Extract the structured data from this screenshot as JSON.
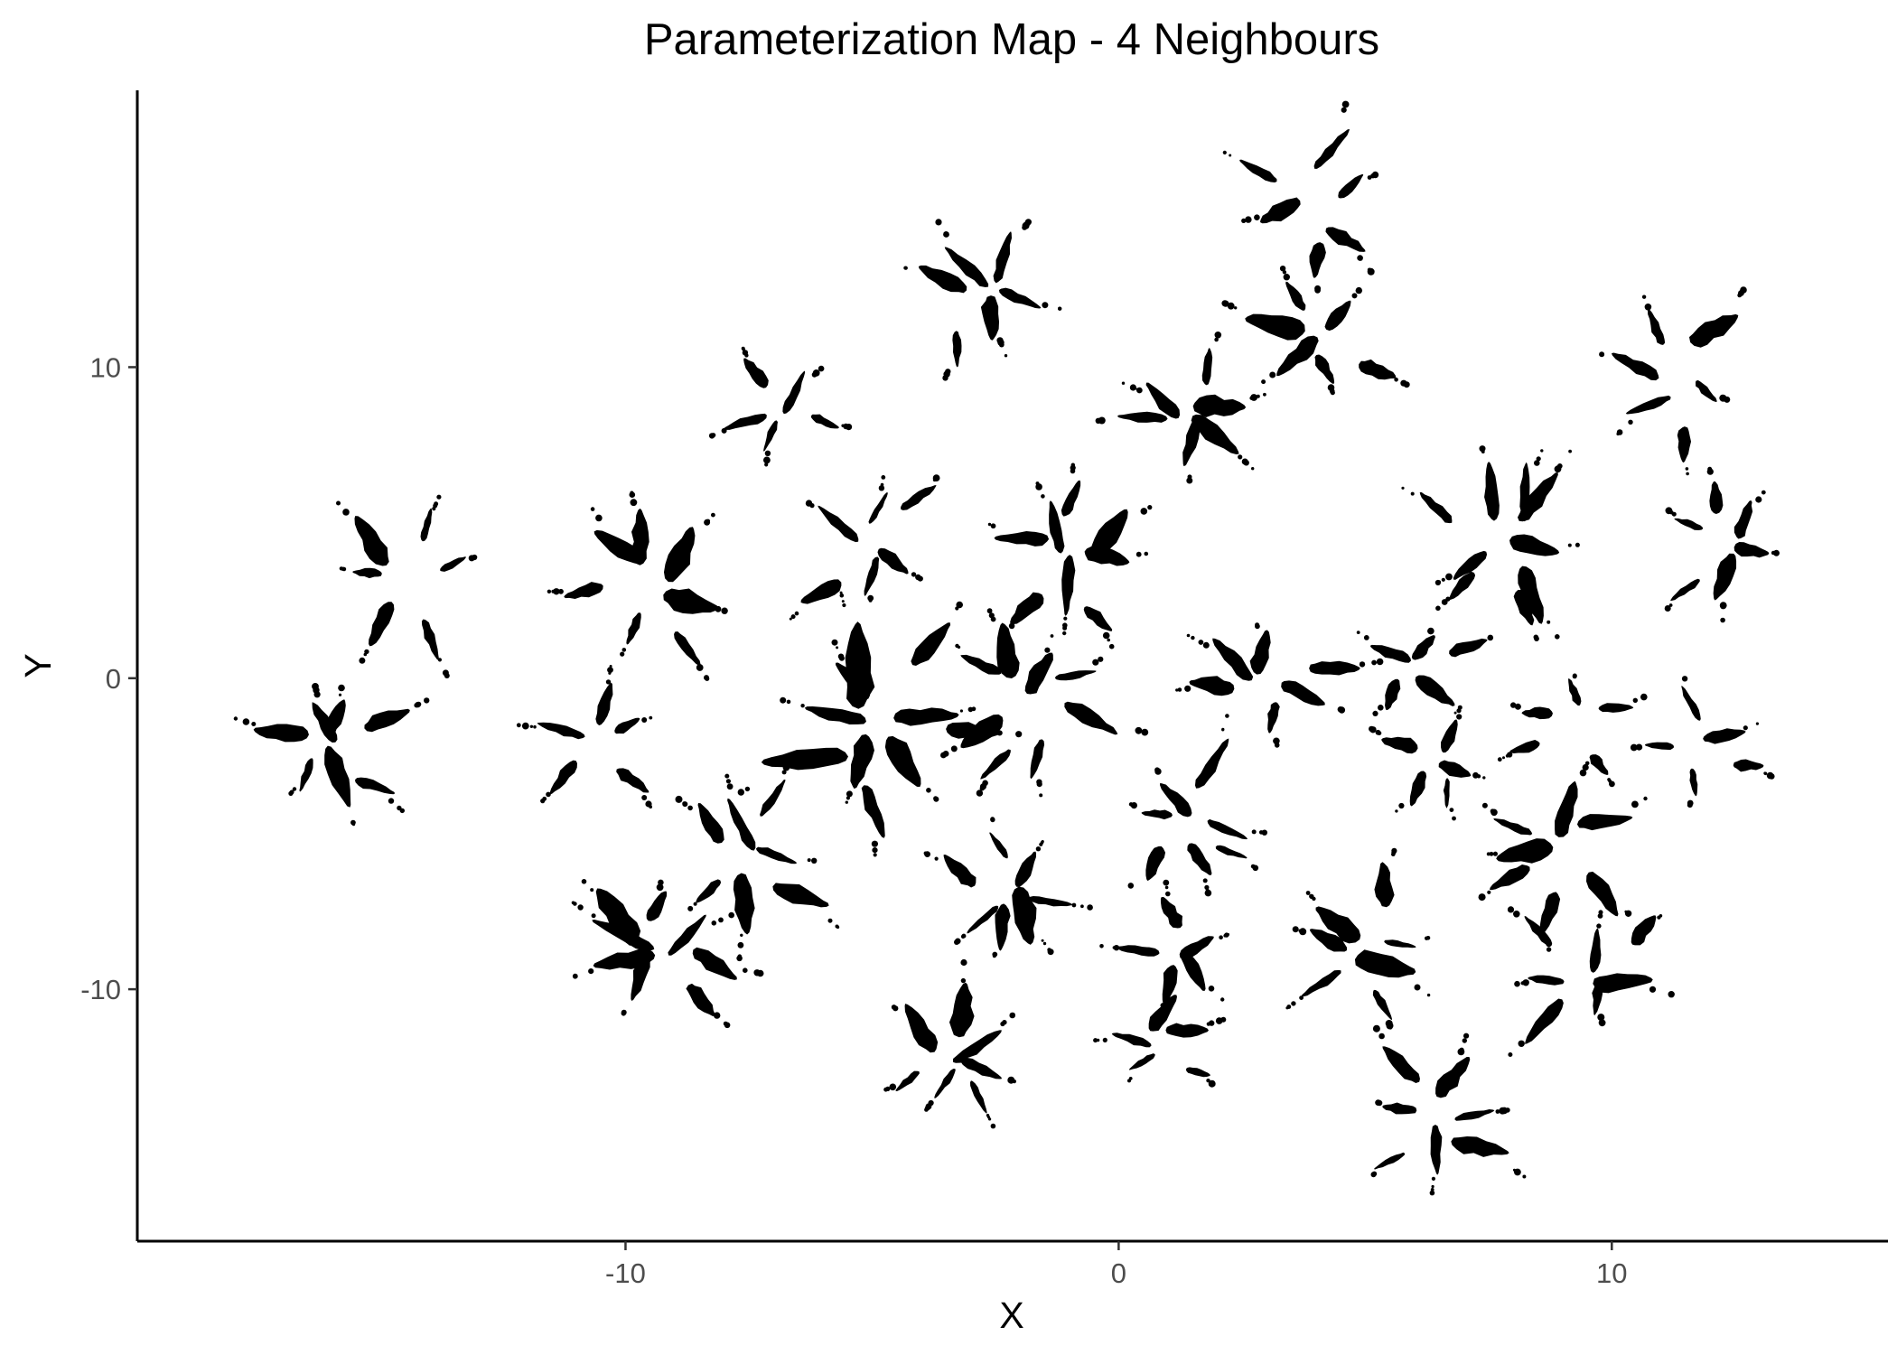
{
  "chart_data": {
    "type": "scatter",
    "title": "Parameterization Map - 4 Neighbours",
    "xlabel": "X",
    "ylabel": "Y",
    "xlim": [
      -19.9,
      15.6
    ],
    "ylim": [
      -18.1,
      18.9
    ],
    "xticks": [
      -10,
      0,
      10
    ],
    "xtick_labels": [
      "-10",
      "0",
      "10"
    ],
    "yticks": [
      -10,
      0,
      10
    ],
    "ytick_labels": [
      "-10",
      "0",
      "10"
    ],
    "grid": false,
    "legend": "none",
    "point_color": "#000000",
    "clusters": [
      {
        "x": -14.5,
        "y": 3.2,
        "leaves": 6,
        "spread": 1.7
      },
      {
        "x": -16.0,
        "y": -2.2,
        "leaves": 7,
        "spread": 1.9
      },
      {
        "x": -9.5,
        "y": 2.8,
        "leaves": 7,
        "spread": 1.8
      },
      {
        "x": -10.5,
        "y": -1.8,
        "leaves": 5,
        "spread": 1.5
      },
      {
        "x": -7.0,
        "y": 8.6,
        "leaves": 5,
        "spread": 1.5
      },
      {
        "x": -5.0,
        "y": -1.5,
        "leaves": 10,
        "spread": 2.6
      },
      {
        "x": -1.8,
        "y": -0.8,
        "leaves": 8,
        "spread": 1.8
      },
      {
        "x": -5.0,
        "y": 4.2,
        "leaves": 6,
        "spread": 1.9
      },
      {
        "x": -1.0,
        "y": 3.8,
        "leaves": 8,
        "spread": 1.9
      },
      {
        "x": -2.8,
        "y": 12.5,
        "leaves": 6,
        "spread": 1.8
      },
      {
        "x": 1.5,
        "y": 8.5,
        "leaves": 6,
        "spread": 1.8
      },
      {
        "x": 4.0,
        "y": 15.3,
        "leaves": 6,
        "spread": 1.7
      },
      {
        "x": 4.0,
        "y": 10.8,
        "leaves": 6,
        "spread": 1.8
      },
      {
        "x": 11.3,
        "y": 9.6,
        "leaves": 6,
        "spread": 1.7
      },
      {
        "x": 7.8,
        "y": 4.2,
        "leaves": 9,
        "spread": 2.1
      },
      {
        "x": 12.3,
        "y": 4.2,
        "leaves": 6,
        "spread": 1.6
      },
      {
        "x": 3.0,
        "y": 0.0,
        "leaves": 6,
        "spread": 1.8
      },
      {
        "x": 6.0,
        "y": 0.3,
        "leaves": 5,
        "spread": 1.5
      },
      {
        "x": 6.5,
        "y": -2.8,
        "leaves": 5,
        "spread": 1.2
      },
      {
        "x": 9.2,
        "y": -1.5,
        "leaves": 5,
        "spread": 1.4
      },
      {
        "x": 11.8,
        "y": -2.1,
        "leaves": 5,
        "spread": 1.4
      },
      {
        "x": 1.5,
        "y": -4.8,
        "leaves": 7,
        "spread": 1.8
      },
      {
        "x": -2.2,
        "y": -7.0,
        "leaves": 7,
        "spread": 1.8
      },
      {
        "x": -7.5,
        "y": -5.6,
        "leaves": 7,
        "spread": 1.9
      },
      {
        "x": -9.5,
        "y": -8.8,
        "leaves": 8,
        "spread": 2.0
      },
      {
        "x": 1.2,
        "y": -8.9,
        "leaves": 5,
        "spread": 1.5
      },
      {
        "x": -3.2,
        "y": -12.3,
        "leaves": 7,
        "spread": 1.7
      },
      {
        "x": 0.8,
        "y": -11.6,
        "leaves": 5,
        "spread": 1.4
      },
      {
        "x": 5.0,
        "y": -8.8,
        "leaves": 7,
        "spread": 1.8
      },
      {
        "x": 8.7,
        "y": -5.6,
        "leaves": 7,
        "spread": 1.8
      },
      {
        "x": 9.6,
        "y": -9.5,
        "leaves": 7,
        "spread": 1.8
      },
      {
        "x": 6.5,
        "y": -14.2,
        "leaves": 7,
        "spread": 1.8
      }
    ]
  }
}
